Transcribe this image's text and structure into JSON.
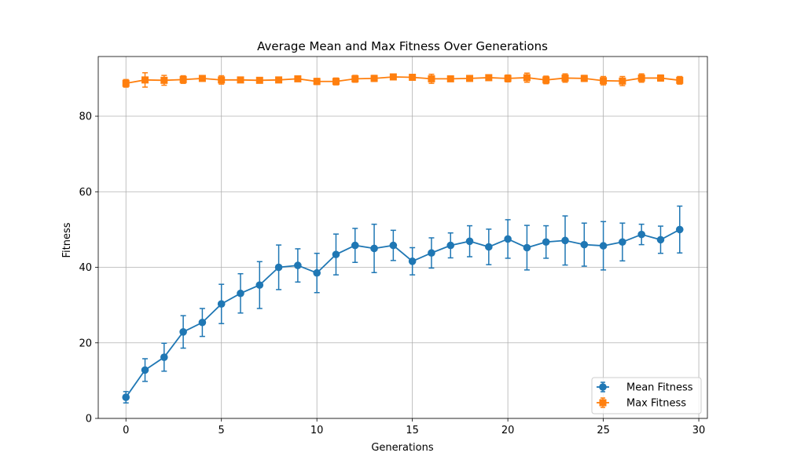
{
  "chart_data": {
    "type": "line",
    "title": "Average Mean and Max Fitness Over Generations",
    "xlabel": "Generations",
    "ylabel": "Fitness",
    "xlim": [
      -1.45,
      30.45
    ],
    "ylim": [
      0,
      95.8
    ],
    "xticks": [
      0,
      5,
      10,
      15,
      20,
      25,
      30
    ],
    "yticks": [
      0,
      20,
      40,
      60,
      80
    ],
    "grid": true,
    "legend_position": "lower-right",
    "x": [
      0,
      1,
      2,
      3,
      4,
      5,
      6,
      7,
      8,
      9,
      10,
      11,
      12,
      13,
      14,
      15,
      16,
      17,
      18,
      19,
      20,
      21,
      22,
      23,
      24,
      25,
      26,
      27,
      28,
      29
    ],
    "series": [
      {
        "name": "Mean Fitness",
        "color": "#1f77b4",
        "marker": "circle",
        "values": [
          5.6,
          12.8,
          16.2,
          22.9,
          25.4,
          30.3,
          33.1,
          35.3,
          40.0,
          40.5,
          38.5,
          43.4,
          45.8,
          45.0,
          45.8,
          41.6,
          43.8,
          45.8,
          46.9,
          45.4,
          47.5,
          45.2,
          46.7,
          47.1,
          46.0,
          45.7,
          46.7,
          48.7,
          47.3,
          50.0
        ],
        "errors": [
          1.5,
          3.0,
          3.7,
          4.3,
          3.7,
          5.2,
          5.2,
          6.2,
          5.9,
          4.4,
          5.2,
          5.4,
          4.5,
          6.4,
          4.0,
          3.6,
          4.0,
          3.3,
          4.1,
          4.7,
          5.1,
          5.9,
          4.3,
          6.5,
          5.7,
          6.4,
          5.0,
          2.7,
          3.6,
          6.2
        ]
      },
      {
        "name": "Max Fitness",
        "color": "#ff7f0e",
        "marker": "square",
        "values": [
          88.7,
          89.6,
          89.5,
          89.7,
          90.0,
          89.6,
          89.6,
          89.5,
          89.6,
          89.9,
          89.2,
          89.2,
          89.9,
          90.0,
          90.4,
          90.3,
          89.9,
          89.9,
          90.0,
          90.2,
          90.0,
          90.2,
          89.6,
          90.1,
          90.0,
          89.4,
          89.3,
          90.1,
          90.1,
          89.5
        ],
        "errors": [
          1.0,
          1.9,
          1.3,
          1.0,
          0.5,
          1.1,
          0.6,
          0.5,
          0.5,
          0.6,
          0.8,
          0.9,
          0.9,
          0.8,
          0.5,
          0.5,
          1.2,
          0.6,
          0.5,
          0.6,
          0.9,
          1.2,
          1.0,
          1.1,
          0.8,
          1.1,
          1.2,
          1.1,
          0.8,
          1.0
        ]
      }
    ]
  }
}
